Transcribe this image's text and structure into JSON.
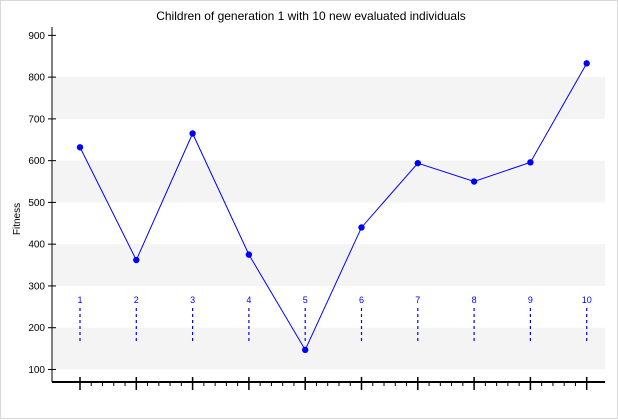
{
  "chart_data": {
    "type": "line",
    "title": "Children of generation 1 with 10 new evaluated individuals",
    "xlabel": "",
    "ylabel": "Fitness",
    "ylim": [
      70,
      920
    ],
    "yticks": [
      100,
      200,
      300,
      400,
      500,
      600,
      700,
      800,
      900
    ],
    "grid": "horizontal alternating bands",
    "x": [
      1,
      2,
      3,
      4,
      5,
      6,
      7,
      8,
      9,
      10
    ],
    "point_labels": [
      "1",
      "2",
      "3",
      "4",
      "5",
      "6",
      "7",
      "8",
      "9",
      "10"
    ],
    "series": [
      {
        "values": [
          632,
          362,
          665,
          375,
          147,
          440,
          594,
          550,
          596,
          833
        ],
        "color": "#0000ff"
      }
    ]
  }
}
